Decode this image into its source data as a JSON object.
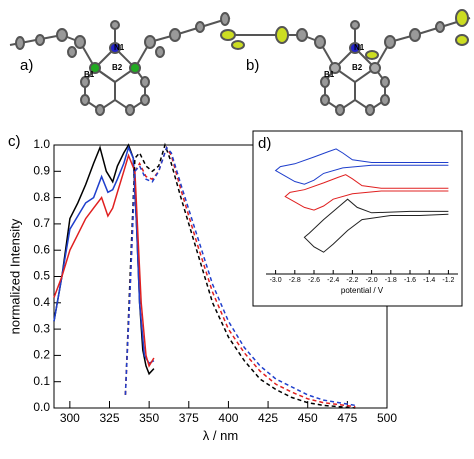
{
  "structures": [
    {
      "label": "a)",
      "atoms": [
        "N1",
        "B1",
        "B2"
      ]
    },
    {
      "label": "b)",
      "atoms": [
        "N1",
        "B1",
        "B2"
      ]
    }
  ],
  "chart_data": [
    {
      "type": "line",
      "label": "c)",
      "xlabel": "λ / nm",
      "ylabel": "normalized Intensity",
      "xlim": [
        290,
        500
      ],
      "ylim": [
        0,
        1.0
      ],
      "xticks": [
        300,
        325,
        350,
        375,
        400,
        425,
        450,
        475,
        500
      ],
      "yticks": [
        {
          "value": 0,
          "label": "0.0"
        },
        0.1,
        0.2,
        0.3,
        0.4,
        0.5,
        0.6,
        0.7,
        0.8,
        0.9,
        {
          "value": 1,
          "label": "1.0"
        }
      ],
      "series": [
        {
          "color": "#000000",
          "dashed": false,
          "x": [
            290,
            295,
            300,
            305,
            310,
            315,
            319,
            323,
            327,
            330,
            334,
            337,
            340,
            342,
            344,
            346,
            348,
            350,
            353
          ],
          "values": [
            0.33,
            0.5,
            0.72,
            0.78,
            0.85,
            0.93,
            0.99,
            0.9,
            0.86,
            0.92,
            0.97,
            1.0,
            0.95,
            0.7,
            0.4,
            0.22,
            0.16,
            0.13,
            0.15
          ]
        },
        {
          "color": "#1f3fcc",
          "dashed": false,
          "x": [
            290,
            295,
            300,
            305,
            310,
            315,
            320,
            324,
            327,
            330,
            334,
            337,
            340,
            342,
            344,
            347,
            350,
            353
          ],
          "values": [
            0.33,
            0.5,
            0.68,
            0.73,
            0.78,
            0.8,
            0.88,
            0.82,
            0.83,
            0.87,
            0.93,
            0.99,
            0.95,
            0.7,
            0.4,
            0.2,
            0.17,
            0.18
          ]
        },
        {
          "color": "#e02020",
          "dashed": false,
          "x": [
            290,
            295,
            300,
            305,
            310,
            315,
            320,
            324,
            327,
            330,
            334,
            337,
            341,
            343,
            345,
            348,
            350,
            353
          ],
          "values": [
            0.42,
            0.5,
            0.6,
            0.66,
            0.72,
            0.76,
            0.8,
            0.73,
            0.76,
            0.82,
            0.9,
            0.96,
            0.9,
            0.65,
            0.4,
            0.2,
            0.16,
            0.19
          ]
        },
        {
          "color": "#000000",
          "dashed": true,
          "x": [
            335,
            338,
            341,
            344,
            348,
            352,
            356,
            360,
            363,
            370,
            380,
            390,
            400,
            410,
            420,
            430,
            440,
            450,
            460,
            480
          ],
          "values": [
            0.05,
            0.5,
            0.95,
            0.97,
            0.92,
            0.9,
            0.92,
            1.0,
            0.95,
            0.8,
            0.6,
            0.4,
            0.27,
            0.18,
            0.11,
            0.07,
            0.04,
            0.02,
            0.01,
            0
          ]
        },
        {
          "color": "#e02020",
          "dashed": true,
          "x": [
            335,
            338,
            341,
            344,
            348,
            352,
            356,
            361,
            364,
            370,
            380,
            390,
            400,
            410,
            420,
            430,
            440,
            450,
            460,
            480
          ],
          "values": [
            0.05,
            0.45,
            0.9,
            0.93,
            0.88,
            0.87,
            0.9,
            0.99,
            0.96,
            0.83,
            0.63,
            0.44,
            0.3,
            0.21,
            0.14,
            0.09,
            0.06,
            0.035,
            0.02,
            0.005
          ]
        },
        {
          "color": "#1f3fcc",
          "dashed": true,
          "x": [
            335,
            338,
            341,
            344,
            348,
            352,
            356,
            361,
            364,
            370,
            380,
            390,
            400,
            410,
            420,
            430,
            440,
            450,
            460,
            480
          ],
          "values": [
            0.05,
            0.45,
            0.9,
            0.92,
            0.87,
            0.86,
            0.9,
            0.99,
            0.97,
            0.85,
            0.66,
            0.47,
            0.33,
            0.23,
            0.16,
            0.11,
            0.08,
            0.05,
            0.03,
            0.01
          ]
        }
      ]
    },
    {
      "type": "line",
      "label": "d)",
      "xlabel": "potential / V",
      "xlim": [
        -3.1,
        -1.1
      ],
      "ylim": [
        0,
        10
      ],
      "xticks": [
        {
          "value": -3,
          "label": "-3.0"
        },
        -2.8,
        -2.6,
        -2.4,
        -2.2,
        {
          "value": -2,
          "label": "-2.0"
        },
        -1.8,
        -1.6,
        -1.4,
        -1.2
      ],
      "series": [
        {
          "color": "#1f3fcc",
          "dashed": false,
          "x": [
            -1.2,
            -1.6,
            -2.0,
            -2.2,
            -2.3,
            -2.37,
            -2.45,
            -2.6,
            -2.8,
            -2.95,
            -3.0,
            -2.9,
            -2.8,
            -2.7,
            -2.6,
            -2.5,
            -2.3,
            -2.0,
            -1.6,
            -1.2
          ],
          "values": [
            8.2,
            8.2,
            8.2,
            8.4,
            8.9,
            9.2,
            9.0,
            8.6,
            8.1,
            7.9,
            7.6,
            7.2,
            6.8,
            6.6,
            6.9,
            7.4,
            7.8,
            8.0,
            8.0,
            8.0
          ]
        },
        {
          "color": "#e02020",
          "dashed": false,
          "x": [
            -1.2,
            -1.6,
            -1.9,
            -2.1,
            -2.2,
            -2.27,
            -2.35,
            -2.5,
            -2.7,
            -2.85,
            -2.9,
            -2.8,
            -2.7,
            -2.6,
            -2.5,
            -2.4,
            -2.2,
            -1.9,
            -1.6,
            -1.2
          ],
          "values": [
            6.3,
            6.3,
            6.3,
            6.5,
            7.0,
            7.3,
            7.1,
            6.7,
            6.2,
            6.0,
            5.7,
            5.3,
            4.9,
            4.7,
            5.0,
            5.5,
            5.9,
            6.1,
            6.1,
            6.1
          ]
        },
        {
          "color": "#222222",
          "dashed": false,
          "x": [
            -1.2,
            -1.6,
            -2.0,
            -2.15,
            -2.25,
            -2.35,
            -2.5,
            -2.65,
            -2.7,
            -2.6,
            -2.5,
            -2.4,
            -2.25,
            -2.1,
            -1.8,
            -1.5,
            -1.2
          ],
          "values": [
            4.6,
            4.6,
            4.5,
            4.9,
            5.5,
            4.9,
            4.0,
            3.0,
            2.7,
            2.0,
            1.6,
            2.2,
            3.2,
            4.0,
            4.3,
            4.3,
            4.4
          ]
        }
      ]
    }
  ]
}
